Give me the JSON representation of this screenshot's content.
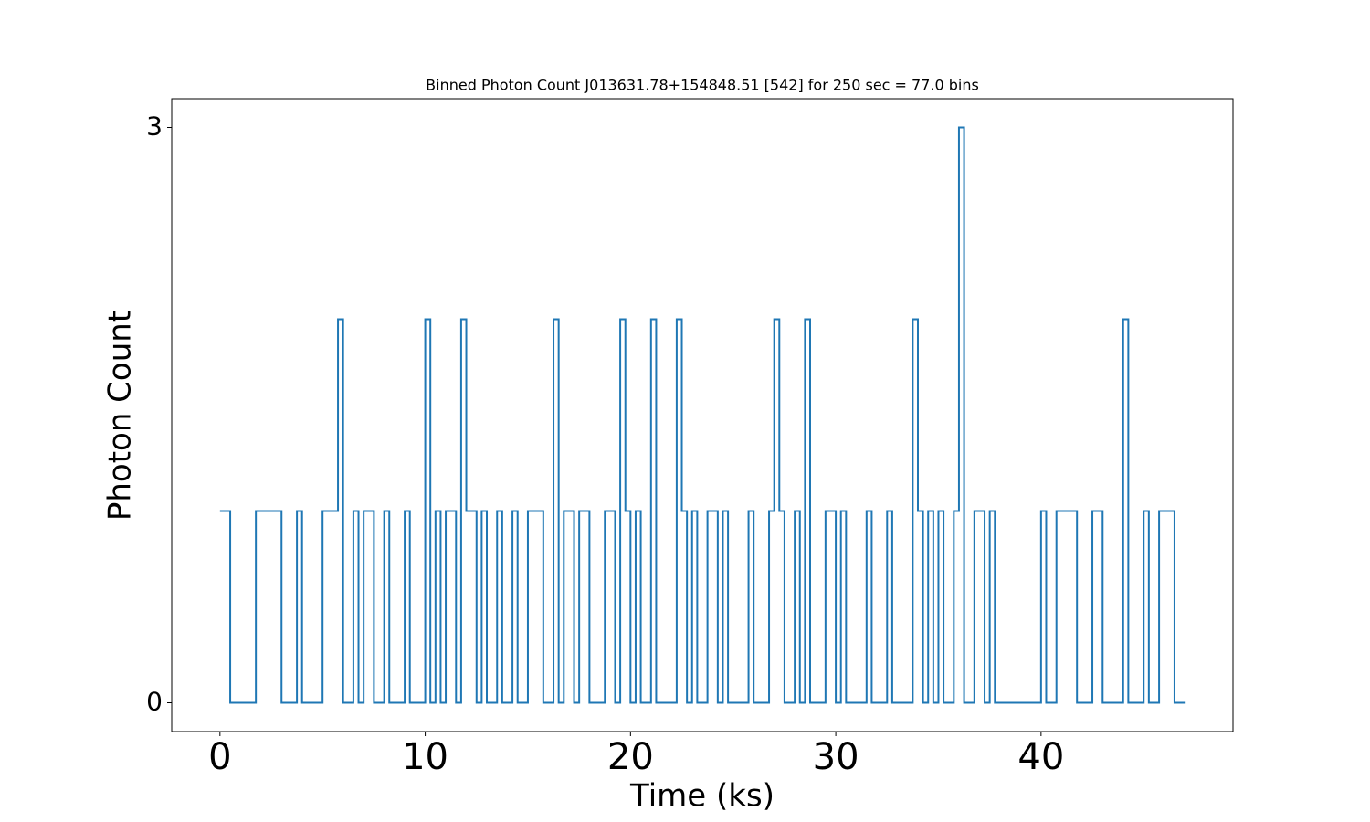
{
  "chart_data": {
    "type": "step",
    "title": "Binned Photon Count J013631.78+154848.51 [542] for 250 sec = 77.0 bins",
    "xlabel": "Time (ks)",
    "ylabel": "Photon Count",
    "x": [
      0,
      0.5,
      1.75,
      3,
      3.75,
      4,
      5,
      5.75,
      6,
      6.5,
      6.75,
      7,
      7.5,
      8,
      8.25,
      9,
      9.25,
      10,
      10.25,
      10.5,
      10.75,
      11,
      11.5,
      11.75,
      12,
      12.5,
      12.75,
      13,
      13.5,
      13.75,
      14.25,
      14.5,
      15,
      15.75,
      16.25,
      16.5,
      16.75,
      17.25,
      17.5,
      18,
      18.75,
      19.25,
      19.5,
      19.75,
      20,
      20.25,
      20.5,
      21,
      21.25,
      22.25,
      22.5,
      22.75,
      23,
      23.25,
      23.75,
      24.25,
      24.5,
      24.75,
      25.75,
      26,
      26.75,
      27,
      27.25,
      27.5,
      28,
      28.25,
      28.5,
      28.75,
      29.5,
      30,
      30.25,
      30.5,
      31.5,
      31.75,
      32.5,
      32.75,
      33.75,
      34,
      34.25,
      34.5,
      34.75,
      35,
      35.25,
      35.75,
      36,
      36.25,
      36.75,
      37.25,
      37.5,
      37.75,
      40,
      40.25,
      40.75,
      41.75,
      42.5,
      43,
      44,
      44.25,
      45,
      45.25,
      45.75,
      46.5,
      47
    ],
    "values": [
      1,
      0,
      1,
      0,
      1,
      0,
      1,
      2,
      0,
      1,
      0,
      1,
      0,
      1,
      0,
      1,
      0,
      2,
      0,
      1,
      0,
      1,
      0,
      2,
      1,
      0,
      1,
      0,
      1,
      0,
      1,
      0,
      1,
      0,
      2,
      0,
      1,
      0,
      1,
      0,
      1,
      0,
      2,
      1,
      0,
      1,
      0,
      2,
      0,
      2,
      1,
      0,
      1,
      0,
      1,
      0,
      1,
      0,
      1,
      0,
      1,
      2,
      1,
      0,
      1,
      0,
      2,
      0,
      1,
      0,
      1,
      0,
      1,
      0,
      1,
      0,
      2,
      1,
      0,
      1,
      0,
      1,
      0,
      1,
      3,
      0,
      1,
      0,
      1,
      0,
      1,
      0,
      1,
      0,
      1,
      0,
      2,
      0,
      1,
      0,
      1,
      0,
      0
    ],
    "color": "#1f77b4",
    "xlim": [
      -2.35,
      49.35
    ],
    "xticks": [
      0,
      10,
      20,
      30,
      40
    ],
    "ylim": [
      -0.15,
      3.15
    ],
    "yticks": [
      0,
      3
    ]
  }
}
